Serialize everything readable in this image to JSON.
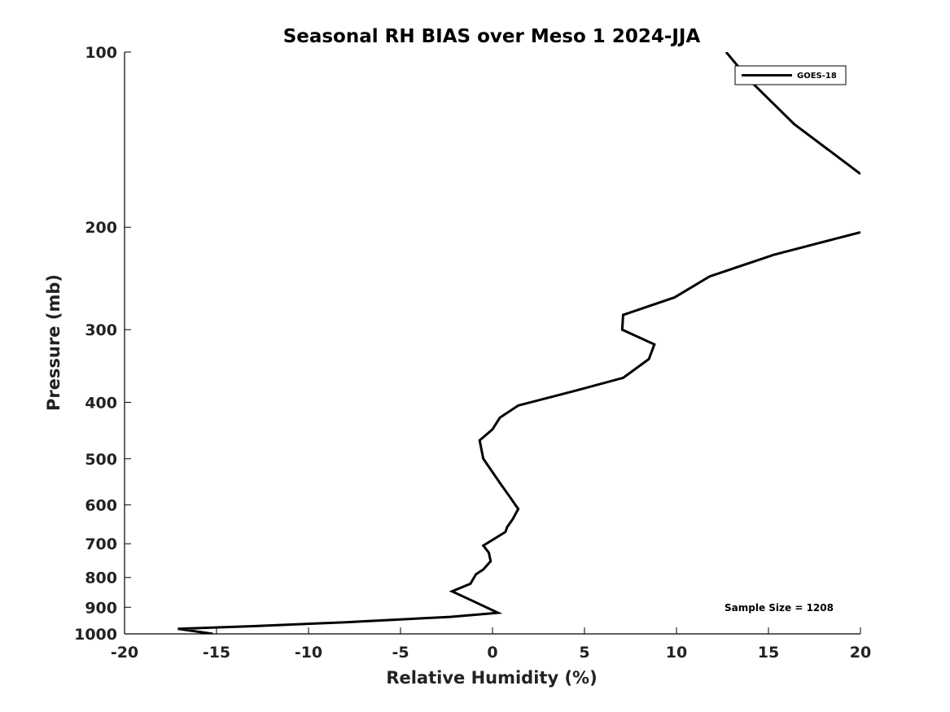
{
  "chart_data": {
    "type": "line",
    "title": "Seasonal RH BIAS over Meso 1  2024-JJA",
    "xlabel": "Relative Humidity (%)",
    "ylabel": "Pressure (mb)",
    "xlim": [
      -20,
      20
    ],
    "ylim": [
      100,
      1000
    ],
    "y_scale": "log",
    "y_reversed": true,
    "x_ticks": [
      -20,
      -15,
      -10,
      -5,
      0,
      5,
      10,
      15,
      20
    ],
    "y_ticks": [
      100,
      200,
      300,
      400,
      500,
      600,
      700,
      800,
      900,
      1000
    ],
    "grid": false,
    "legend_position": "top-right",
    "annotation": "Sample Size = 1208",
    "colors": {
      "series": "#000000"
    },
    "series": [
      {
        "name": "GOES-18",
        "segments": [
          [
            {
              "x": 12.7,
              "y": 100
            },
            {
              "x": 14.0,
              "y": 112
            },
            {
              "x": 16.4,
              "y": 133
            },
            {
              "x": 20.0,
              "y": 162
            }
          ],
          [
            {
              "x": 20.0,
              "y": 204
            },
            {
              "x": 15.3,
              "y": 223
            },
            {
              "x": 11.8,
              "y": 243
            },
            {
              "x": 9.9,
              "y": 264
            },
            {
              "x": 7.1,
              "y": 283
            },
            {
              "x": 7.05,
              "y": 300
            },
            {
              "x": 8.8,
              "y": 318
            },
            {
              "x": 8.5,
              "y": 337
            },
            {
              "x": 7.1,
              "y": 363
            },
            {
              "x": 4.5,
              "y": 382
            },
            {
              "x": 1.4,
              "y": 405
            },
            {
              "x": 0.4,
              "y": 425
            },
            {
              "x": 0.0,
              "y": 445
            },
            {
              "x": -0.7,
              "y": 465
            },
            {
              "x": -0.5,
              "y": 500
            },
            {
              "x": 0.4,
              "y": 550
            },
            {
              "x": 1.0,
              "y": 585
            },
            {
              "x": 1.4,
              "y": 610
            },
            {
              "x": 1.1,
              "y": 635
            },
            {
              "x": 0.8,
              "y": 655
            },
            {
              "x": 0.7,
              "y": 668
            },
            {
              "x": -0.5,
              "y": 705
            },
            {
              "x": -0.2,
              "y": 725
            },
            {
              "x": -0.1,
              "y": 750
            },
            {
              "x": -0.5,
              "y": 775
            },
            {
              "x": -0.9,
              "y": 790
            },
            {
              "x": -1.2,
              "y": 820
            },
            {
              "x": -2.2,
              "y": 845
            },
            {
              "x": -1.0,
              "y": 880
            },
            {
              "x": 0.3,
              "y": 920
            },
            {
              "x": -2.3,
              "y": 935
            },
            {
              "x": -8.0,
              "y": 955
            },
            {
              "x": -13.0,
              "y": 970
            },
            {
              "x": -17.1,
              "y": 980
            },
            {
              "x": -15.2,
              "y": 1000
            }
          ]
        ]
      }
    ]
  }
}
